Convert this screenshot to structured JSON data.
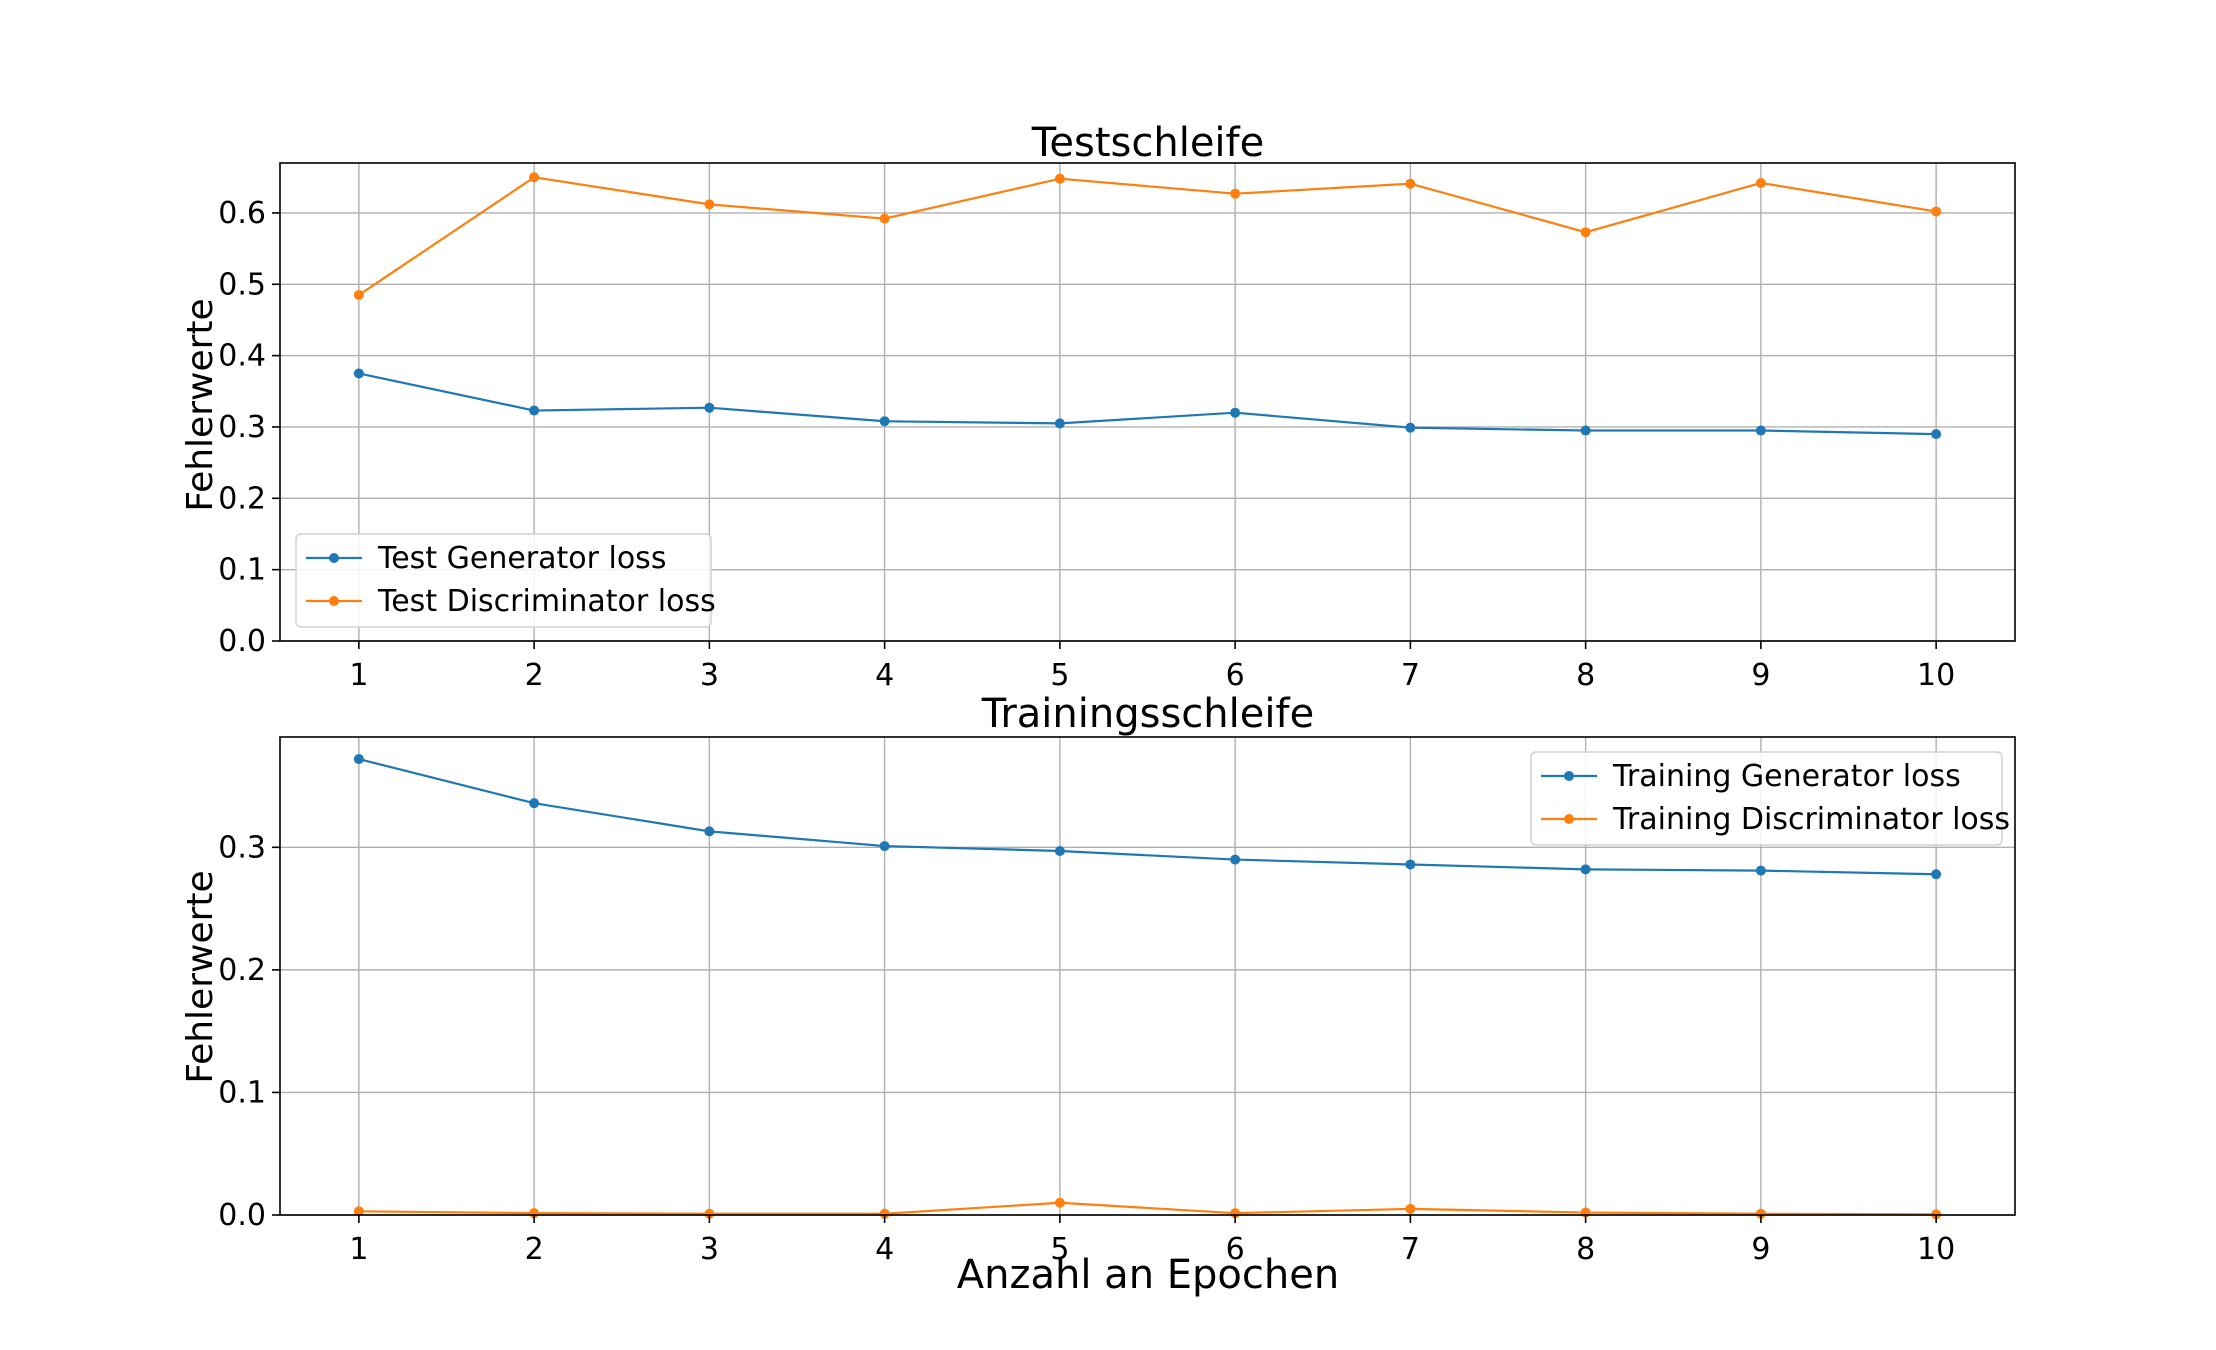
{
  "chart_data": [
    {
      "type": "line",
      "title": "Testschleife",
      "xlabel": "",
      "ylabel": "Fehlerwerte",
      "x": [
        1,
        2,
        3,
        4,
        5,
        6,
        7,
        8,
        9,
        10
      ],
      "xlim": [
        0.55,
        10.45
      ],
      "ylim": [
        0,
        0.67
      ],
      "yticks": [
        0.0,
        0.1,
        0.2,
        0.3,
        0.4,
        0.5,
        0.6
      ],
      "ytick_labels": [
        "0.0",
        "0.1",
        "0.2",
        "0.3",
        "0.4",
        "0.5",
        "0.6"
      ],
      "xtick_labels": [
        "1",
        "2",
        "3",
        "4",
        "5",
        "6",
        "7",
        "8",
        "9",
        "10"
      ],
      "grid": true,
      "legend": "lower-left",
      "series": [
        {
          "name": "Test Generator loss",
          "color": "#1f77b4",
          "values": [
            0.375,
            0.323,
            0.327,
            0.308,
            0.305,
            0.32,
            0.299,
            0.295,
            0.295,
            0.29
          ]
        },
        {
          "name": "Test Discriminator loss",
          "color": "#ff7f0e",
          "values": [
            0.485,
            0.65,
            0.612,
            0.592,
            0.648,
            0.627,
            0.641,
            0.573,
            0.642,
            0.602
          ]
        }
      ]
    },
    {
      "type": "line",
      "title": "Trainingsschleife",
      "xlabel": "Anzahl an Epochen",
      "ylabel": "Fehlerwerte",
      "x": [
        1,
        2,
        3,
        4,
        5,
        6,
        7,
        8,
        9,
        10
      ],
      "xlim": [
        0.55,
        10.45
      ],
      "ylim": [
        0,
        0.39
      ],
      "yticks": [
        0.0,
        0.1,
        0.2,
        0.3
      ],
      "ytick_labels": [
        "0.0",
        "0.1",
        "0.2",
        "0.3"
      ],
      "xtick_labels": [
        "1",
        "2",
        "3",
        "4",
        "5",
        "6",
        "7",
        "8",
        "9",
        "10"
      ],
      "grid": true,
      "legend": "upper-right",
      "series": [
        {
          "name": "Training Generator loss",
          "color": "#1f77b4",
          "values": [
            0.372,
            0.336,
            0.313,
            0.301,
            0.297,
            0.29,
            0.286,
            0.282,
            0.281,
            0.278
          ]
        },
        {
          "name": "Training Discriminator loss",
          "color": "#ff7f0e",
          "values": [
            0.003,
            0.0015,
            0.001,
            0.001,
            0.01,
            0.0015,
            0.005,
            0.002,
            0.001,
            0.0005
          ]
        }
      ]
    }
  ]
}
